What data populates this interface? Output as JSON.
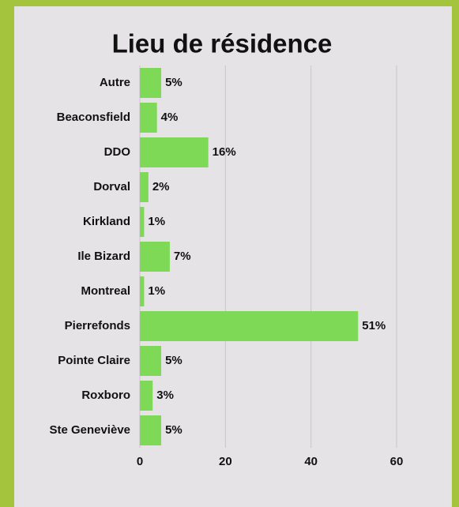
{
  "chart_data": {
    "type": "bar",
    "orientation": "horizontal",
    "title": "Lieu de résidence",
    "categories": [
      "Autre",
      "Beaconsfield",
      "DDO",
      "Dorval",
      "Kirkland",
      "Ile Bizard",
      "Montreal",
      "Pierrefonds",
      "Pointe Claire",
      "Roxboro",
      "Ste Geneviève"
    ],
    "values": [
      5,
      4,
      16,
      2,
      1,
      7,
      1,
      51,
      5,
      3,
      5
    ],
    "value_labels": [
      "5%",
      "4%",
      "16%",
      "2%",
      "1%",
      "7%",
      "1%",
      "51%",
      "5%",
      "3%",
      "5%"
    ],
    "color": "#7ed957",
    "xlim": [
      0,
      60
    ],
    "xticks": [
      0,
      20,
      40,
      60
    ],
    "grid": true
  }
}
